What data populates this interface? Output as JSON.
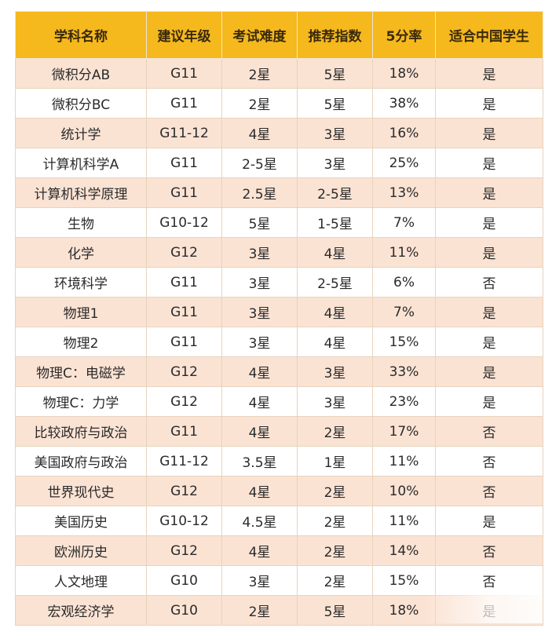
{
  "table": {
    "headers": [
      "学科名称",
      "建议年级",
      "考试难度",
      "推荐指数",
      "5分率",
      "适合中国学生"
    ],
    "rows": [
      [
        "微积分AB",
        "G11",
        "2星",
        "5星",
        "18%",
        "是"
      ],
      [
        "微积分BC",
        "G11",
        "2星",
        "5星",
        "38%",
        "是"
      ],
      [
        "统计学",
        "G11-12",
        "4星",
        "3星",
        "16%",
        "是"
      ],
      [
        "计算机科学A",
        "G11",
        "2-5星",
        "3星",
        "25%",
        "是"
      ],
      [
        "计算机科学原理",
        "G11",
        "2.5星",
        "2-5星",
        "13%",
        "是"
      ],
      [
        "生物",
        "G10-12",
        "5星",
        "1-5星",
        "7%",
        "是"
      ],
      [
        "化学",
        "G12",
        "3星",
        "4星",
        "11%",
        "是"
      ],
      [
        "环境科学",
        "G11",
        "3星",
        "2-5星",
        "6%",
        "否"
      ],
      [
        "物理1",
        "G11",
        "3星",
        "4星",
        "7%",
        "是"
      ],
      [
        "物理2",
        "G11",
        "3星",
        "4星",
        "15%",
        "是"
      ],
      [
        "物理C：电磁学",
        "G12",
        "4星",
        "3星",
        "33%",
        "是"
      ],
      [
        "物理C：力学",
        "G12",
        "4星",
        "3星",
        "23%",
        "是"
      ],
      [
        "比较政府与政治",
        "G11",
        "4星",
        "2星",
        "17%",
        "否"
      ],
      [
        "美国政府与政治",
        "G11-12",
        "3.5星",
        "1星",
        "11%",
        "否"
      ],
      [
        "世界现代史",
        "G12",
        "4星",
        "2星",
        "10%",
        "否"
      ],
      [
        "美国历史",
        "G10-12",
        "4.5星",
        "2星",
        "11%",
        "是"
      ],
      [
        "欧洲历史",
        "G12",
        "4星",
        "2星",
        "14%",
        "否"
      ],
      [
        "人文地理",
        "G10",
        "3星",
        "2星",
        "15%",
        "否"
      ],
      [
        "宏观经济学",
        "G10",
        "2星",
        "5星",
        "18%",
        "是"
      ]
    ]
  },
  "colors": {
    "header_bg": "#f5b81d",
    "row_tint": "#fbe3d4",
    "row_plain": "#ffffff"
  }
}
